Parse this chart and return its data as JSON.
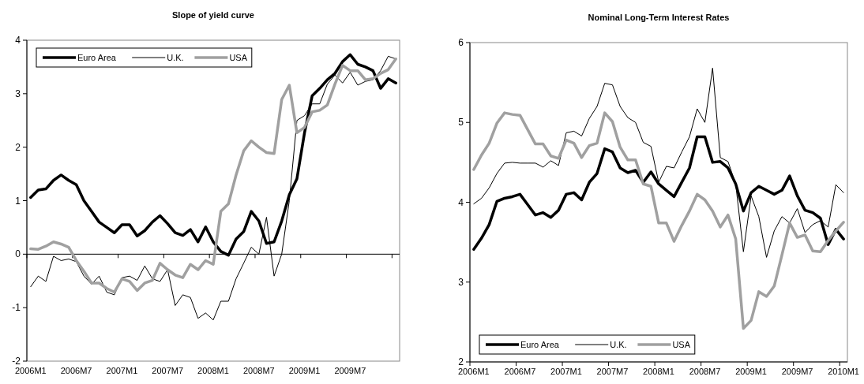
{
  "chart_data": [
    {
      "type": "line",
      "title": "Slope of yield curve",
      "categories": [
        "2006M1",
        null,
        null,
        null,
        null,
        null,
        "2006M7",
        null,
        null,
        null,
        null,
        null,
        "2007M1",
        null,
        null,
        null,
        null,
        null,
        "2007M7",
        null,
        null,
        null,
        null,
        null,
        "2008M1",
        null,
        null,
        null,
        null,
        null,
        "2008M7",
        null,
        null,
        null,
        null,
        null,
        "2009M1",
        null,
        null,
        null,
        null,
        null,
        "2009M7",
        null,
        null,
        null,
        null,
        null,
        null
      ],
      "ylim": [
        -2,
        4
      ],
      "yticks": [
        -2,
        -1,
        0,
        1,
        2,
        3,
        4
      ],
      "legend": "top",
      "series": [
        {
          "name": "Euro Area",
          "color": "#000000",
          "values": [
            1.06,
            1.2,
            1.22,
            1.38,
            1.48,
            1.38,
            1.3,
            1.0,
            0.8,
            0.6,
            0.5,
            0.4,
            0.55,
            0.55,
            0.34,
            0.44,
            0.6,
            0.72,
            0.57,
            0.4,
            0.35,
            0.46,
            0.23,
            0.51,
            0.23,
            0.05,
            -0.02,
            0.28,
            0.42,
            0.8,
            0.62,
            0.2,
            0.23,
            0.62,
            1.11,
            1.41,
            2.27,
            2.96,
            3.1,
            3.26,
            3.38,
            3.6,
            3.73,
            3.55,
            3.5,
            3.43,
            3.1,
            3.28,
            3.2
          ]
        },
        {
          "name": "U.K.",
          "color": "#000000",
          "values": [
            -0.61,
            -0.41,
            -0.51,
            -0.04,
            -0.12,
            -0.09,
            -0.14,
            -0.41,
            -0.56,
            -0.41,
            -0.71,
            -0.76,
            -0.44,
            -0.41,
            -0.49,
            -0.22,
            -0.46,
            -0.51,
            -0.29,
            -0.96,
            -0.76,
            -0.81,
            -1.2,
            -1.1,
            -1.23,
            -0.88,
            -0.88,
            -0.46,
            -0.17,
            0.13,
            0.0,
            0.69,
            -0.41,
            0.0,
            1.0,
            2.5,
            2.59,
            2.81,
            2.81,
            3.18,
            3.35,
            3.2,
            3.4,
            3.16,
            3.23,
            3.26,
            3.43,
            3.7,
            3.65
          ]
        },
        {
          "name": "USA",
          "color": "#a0a0a0",
          "values": [
            0.1,
            0.09,
            0.15,
            0.23,
            0.19,
            0.13,
            -0.12,
            -0.32,
            -0.54,
            -0.54,
            -0.64,
            -0.71,
            -0.46,
            -0.51,
            -0.68,
            -0.54,
            -0.49,
            -0.17,
            -0.29,
            -0.39,
            -0.44,
            -0.19,
            -0.29,
            -0.12,
            -0.19,
            0.8,
            0.94,
            1.48,
            1.93,
            2.12,
            2.0,
            1.9,
            1.88,
            2.89,
            3.16,
            2.27,
            2.37,
            2.66,
            2.69,
            2.79,
            3.18,
            3.53,
            3.43,
            3.43,
            3.26,
            3.28,
            3.38,
            3.45,
            3.65
          ]
        }
      ]
    },
    {
      "type": "line",
      "title": "Nominal Long-Term Interest Rates",
      "categories": [
        "2006M1",
        null,
        null,
        null,
        null,
        null,
        "2006M7",
        null,
        null,
        null,
        null,
        null,
        "2007M1",
        null,
        null,
        null,
        null,
        null,
        "2007M7",
        null,
        null,
        null,
        null,
        null,
        "2008M1",
        null,
        null,
        null,
        null,
        null,
        "2008M7",
        null,
        null,
        null,
        null,
        null,
        "2009M1",
        null,
        null,
        null,
        null,
        null,
        "2009M7",
        null,
        null,
        null,
        null,
        null,
        "2010M1"
      ],
      "ylim": [
        2,
        6
      ],
      "yticks": [
        2,
        3,
        4,
        5,
        6
      ],
      "legend": "bottom left",
      "series": [
        {
          "name": "Euro Area",
          "color": "#000000",
          "values": [
            3.41,
            3.55,
            3.72,
            4.01,
            4.05,
            4.07,
            4.1,
            3.97,
            3.84,
            3.87,
            3.81,
            3.9,
            4.1,
            4.12,
            4.03,
            4.25,
            4.36,
            4.67,
            4.63,
            4.43,
            4.37,
            4.4,
            4.25,
            4.38,
            4.23,
            4.15,
            4.07,
            4.25,
            4.43,
            4.82,
            4.82,
            4.5,
            4.51,
            4.43,
            4.23,
            3.89,
            4.12,
            4.2,
            4.15,
            4.1,
            4.15,
            4.33,
            4.08,
            3.9,
            3.87,
            3.8,
            3.47,
            3.66,
            3.54
          ]
        },
        {
          "name": "U.K.",
          "color": "#000000",
          "values": [
            3.98,
            4.05,
            4.18,
            4.36,
            4.49,
            4.5,
            4.49,
            4.49,
            4.49,
            4.44,
            4.52,
            4.46,
            4.87,
            4.89,
            4.83,
            5.05,
            5.2,
            5.49,
            5.47,
            5.2,
            5.06,
            5.0,
            4.75,
            4.7,
            4.25,
            4.45,
            4.43,
            4.63,
            4.82,
            5.17,
            5.0,
            5.68,
            4.56,
            4.51,
            4.23,
            3.38,
            4.08,
            3.82,
            3.31,
            3.64,
            3.82,
            3.74,
            3.92,
            3.62,
            3.72,
            3.77,
            3.69,
            4.22,
            4.12
          ]
        },
        {
          "name": "USA",
          "color": "#a0a0a0",
          "values": [
            4.41,
            4.59,
            4.74,
            4.99,
            5.12,
            5.1,
            5.09,
            4.91,
            4.73,
            4.73,
            4.58,
            4.55,
            4.78,
            4.74,
            4.56,
            4.71,
            4.74,
            5.12,
            5.01,
            4.69,
            4.53,
            4.53,
            4.23,
            4.2,
            3.74,
            3.74,
            3.51,
            3.71,
            3.89,
            4.1,
            4.03,
            3.89,
            3.69,
            3.84,
            3.54,
            2.42,
            2.52,
            2.88,
            2.82,
            2.95,
            3.34,
            3.74,
            3.56,
            3.59,
            3.39,
            3.38,
            3.52,
            3.64,
            3.75
          ]
        }
      ]
    }
  ]
}
